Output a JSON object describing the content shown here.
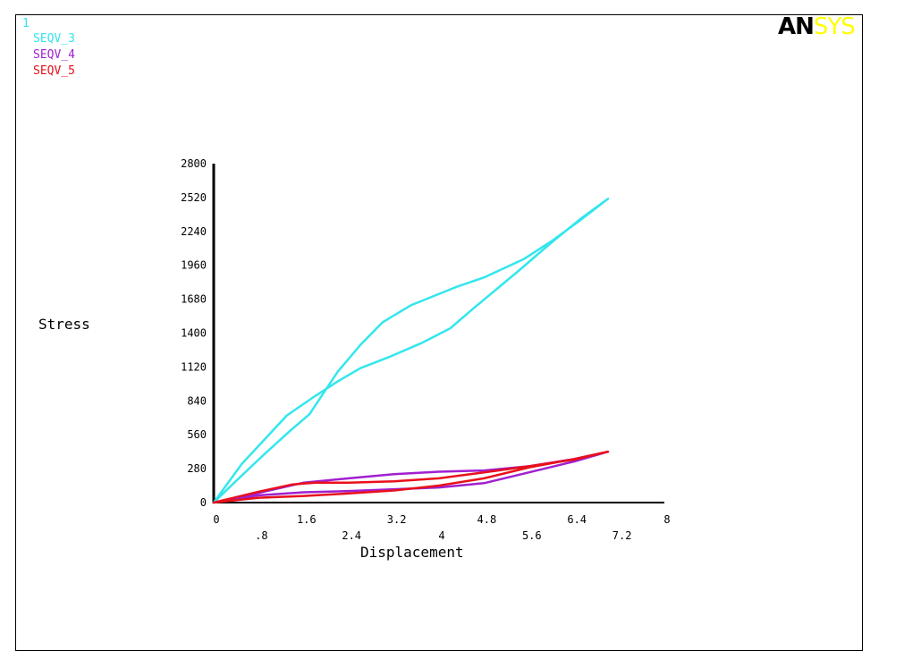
{
  "window_number": "1",
  "logo": {
    "primary": "AN",
    "secondary": "SYS",
    "primary_color": "#000000",
    "secondary_color": "#ffff00"
  },
  "legend": [
    {
      "label": "SEQV_3",
      "color": "#33e6ee"
    },
    {
      "label": "SEQV_4",
      "color": "#a020d0"
    },
    {
      "label": "SEQV_5",
      "color": "#e8101c"
    }
  ],
  "chart_data": {
    "type": "line",
    "xlabel": "Displacement",
    "ylabel": "Stress",
    "xlim": [
      0,
      8
    ],
    "ylim": [
      0,
      2800
    ],
    "xticks_row1": [
      "0",
      "1.6",
      "3.2",
      "4.8",
      "6.4",
      "8"
    ],
    "xticks_row1_values": [
      0,
      1.6,
      3.2,
      4.8,
      6.4,
      8
    ],
    "xticks_row2": [
      ".8",
      "2.4",
      "4",
      "5.6",
      "7.2"
    ],
    "xticks_row2_values": [
      0.8,
      2.4,
      4,
      5.6,
      7.2
    ],
    "yticks": [
      "0",
      "280",
      "560",
      "840",
      "1120",
      "1400",
      "1680",
      "1960",
      "2240",
      "2520",
      "2800"
    ],
    "ytick_values": [
      0,
      280,
      560,
      840,
      1120,
      1400,
      1680,
      1960,
      2240,
      2520,
      2800
    ],
    "grid": false,
    "legend_position": "top-left",
    "series": [
      {
        "name": "SEQV_3",
        "color": "#33e6ee",
        "x": [
          0,
          0.4,
          0.9,
          1.35,
          1.7,
          2.2,
          2.6,
          3.0,
          3.5,
          4.3,
          4.8,
          5.5,
          6.0,
          6.5,
          7.0,
          6.5,
          6.0,
          5.4,
          4.6,
          4.2,
          3.7,
          3.1,
          2.6,
          2.2,
          1.8,
          1.3,
          0.9,
          0.5,
          0
        ],
        "y": [
          0,
          180,
          400,
          590,
          730,
          1080,
          1300,
          1490,
          1630,
          1780,
          1860,
          2010,
          2160,
          2330,
          2510,
          2340,
          2150,
          1910,
          1600,
          1440,
          1320,
          1200,
          1110,
          1000,
          880,
          720,
          520,
          320,
          0
        ]
      },
      {
        "name": "SEQV_4",
        "color": "#a020d0",
        "x": [
          0,
          0.8,
          1.6,
          2.4,
          3.2,
          4.0,
          4.8,
          5.6,
          6.4,
          7.0,
          6.4,
          5.6,
          4.8,
          4.0,
          3.2,
          2.4,
          1.6,
          0.8,
          0
        ],
        "y": [
          0,
          80,
          165,
          200,
          235,
          255,
          265,
          300,
          360,
          420,
          340,
          250,
          160,
          125,
          110,
          95,
          85,
          60,
          0
        ]
      },
      {
        "name": "SEQV_5",
        "color": "#e8101c",
        "x": [
          0,
          0.8,
          1.4,
          1.8,
          2.4,
          3.2,
          4.0,
          4.8,
          5.6,
          6.4,
          7.0,
          6.4,
          5.6,
          4.8,
          4.0,
          3.2,
          2.4,
          1.6,
          0.8,
          0
        ],
        "y": [
          0,
          90,
          150,
          165,
          165,
          175,
          200,
          250,
          300,
          355,
          420,
          360,
          290,
          200,
          140,
          100,
          75,
          55,
          40,
          0
        ]
      }
    ]
  }
}
